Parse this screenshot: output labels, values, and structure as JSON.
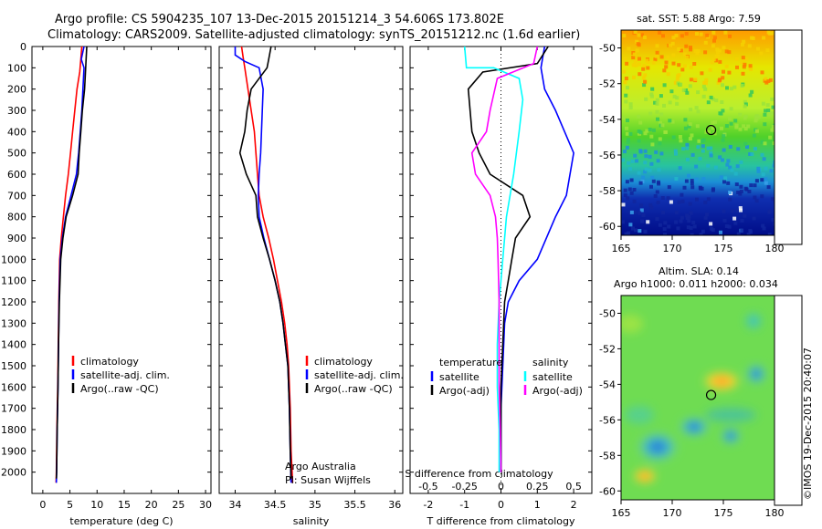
{
  "header": {
    "line1": "Argo profile: CS 5904235_107 13-Dec-2015 20151214_3 54.606S 173.802E",
    "line2": "Climatology: CARS2009. Satellite-adjusted climatology: synTS_20151212.nc (1.6d earlier)"
  },
  "credits": {
    "org": "Argo Australia",
    "pi": "PI: Susan Wijffels",
    "stamp": "©IMOS 19-Dec-2015 20:40:07"
  },
  "colors": {
    "climatology": "#ff0000",
    "satellite": "#0000ff",
    "argo": "#000000",
    "sal_satellite": "#00ffff",
    "sal_argo": "#ff00ff",
    "marker": "#000000"
  },
  "chart_data": [
    {
      "type": "line",
      "xlabel": "temperature (deg C)",
      "ylabel": "",
      "xlim": [
        -2,
        31
      ],
      "ylim": [
        2100,
        0
      ],
      "xticks": [
        "0",
        "5",
        "10",
        "15",
        "20",
        "25",
        "30"
      ],
      "yticks": [
        "0",
        "100",
        "200",
        "300",
        "400",
        "500",
        "600",
        "700",
        "800",
        "900",
        "1000",
        "1100",
        "1200",
        "1300",
        "1400",
        "1500",
        "1600",
        "1700",
        "1800",
        "1900",
        "2000"
      ],
      "legend": [
        "climatology",
        "satellite-adj. clim.",
        "Argo(..raw -QC)"
      ],
      "legend_position": "lower-center",
      "series": [
        {
          "name": "climatology",
          "color": "#ff0000",
          "points": [
            [
              7.2,
              0
            ],
            [
              7.0,
              60
            ],
            [
              6.8,
              120
            ],
            [
              6.3,
              200
            ],
            [
              5.9,
              300
            ],
            [
              5.5,
              400
            ],
            [
              5.1,
              500
            ],
            [
              4.7,
              600
            ],
            [
              4.2,
              700
            ],
            [
              3.8,
              800
            ],
            [
              3.4,
              900
            ],
            [
              3.1,
              1000
            ],
            [
              2.95,
              1200
            ],
            [
              2.85,
              1400
            ],
            [
              2.75,
              1600
            ],
            [
              2.6,
              1800
            ],
            [
              2.5,
              2000
            ],
            [
              2.45,
              2050
            ]
          ]
        },
        {
          "name": "satellite-adj. clim.",
          "color": "#0000ff",
          "points": [
            [
              7.6,
              0
            ],
            [
              7.1,
              60
            ],
            [
              7.6,
              100
            ],
            [
              7.4,
              200
            ],
            [
              7.2,
              300
            ],
            [
              6.9,
              400
            ],
            [
              6.6,
              500
            ],
            [
              6.2,
              600
            ],
            [
              5.2,
              700
            ],
            [
              4.2,
              800
            ],
            [
              3.6,
              900
            ],
            [
              3.2,
              1000
            ],
            [
              3.0,
              1200
            ],
            [
              2.9,
              1400
            ],
            [
              2.8,
              1600
            ],
            [
              2.65,
              1800
            ],
            [
              2.55,
              2000
            ],
            [
              2.5,
              2050
            ]
          ]
        },
        {
          "name": "Argo(..raw -QC)",
          "color": "#000000",
          "points": [
            [
              8.1,
              0
            ],
            [
              7.9,
              100
            ],
            [
              7.7,
              200
            ],
            [
              7.3,
              300
            ],
            [
              7.0,
              400
            ],
            [
              6.7,
              500
            ],
            [
              6.5,
              600
            ],
            [
              5.5,
              700
            ],
            [
              4.3,
              800
            ],
            [
              3.7,
              900
            ],
            [
              3.3,
              1000
            ],
            [
              3.05,
              1200
            ],
            [
              2.9,
              1400
            ],
            [
              2.8,
              1600
            ],
            [
              2.65,
              1800
            ],
            [
              2.55,
              2000
            ],
            [
              2.5,
              2030
            ]
          ]
        }
      ]
    },
    {
      "type": "line",
      "xlabel": "salinity",
      "ylabel": "",
      "xlim": [
        33.8,
        36.1
      ],
      "ylim": [
        2100,
        0
      ],
      "xticks": [
        "34",
        "34.5",
        "35",
        "35.5",
        "36"
      ],
      "legend": [
        "climatology",
        "satellite-adj. clim.",
        "Argo(..raw -QC)"
      ],
      "legend_position": "lower-right",
      "series": [
        {
          "name": "climatology",
          "color": "#ff0000",
          "points": [
            [
              34.08,
              0
            ],
            [
              34.1,
              50
            ],
            [
              34.12,
              100
            ],
            [
              34.16,
              200
            ],
            [
              34.2,
              300
            ],
            [
              34.24,
              400
            ],
            [
              34.26,
              500
            ],
            [
              34.28,
              600
            ],
            [
              34.3,
              700
            ],
            [
              34.35,
              800
            ],
            [
              34.42,
              900
            ],
            [
              34.48,
              1000
            ],
            [
              34.53,
              1100
            ],
            [
              34.58,
              1200
            ],
            [
              34.62,
              1300
            ],
            [
              34.65,
              1400
            ],
            [
              34.67,
              1500
            ],
            [
              34.69,
              1700
            ],
            [
              34.7,
              1900
            ],
            [
              34.72,
              2050
            ]
          ]
        },
        {
          "name": "satellite-adj. clim.",
          "color": "#0000ff",
          "points": [
            [
              34.0,
              0
            ],
            [
              34.0,
              40
            ],
            [
              34.12,
              70
            ],
            [
              34.3,
              100
            ],
            [
              34.35,
              200
            ],
            [
              34.34,
              300
            ],
            [
              34.33,
              400
            ],
            [
              34.32,
              500
            ],
            [
              34.3,
              600
            ],
            [
              34.29,
              700
            ],
            [
              34.3,
              800
            ],
            [
              34.36,
              900
            ],
            [
              34.43,
              1000
            ],
            [
              34.5,
              1100
            ],
            [
              34.56,
              1200
            ],
            [
              34.6,
              1300
            ],
            [
              34.63,
              1400
            ],
            [
              34.66,
              1500
            ],
            [
              34.68,
              1700
            ],
            [
              34.69,
              1900
            ],
            [
              34.7,
              2050
            ]
          ]
        },
        {
          "name": "Argo(..raw -QC)",
          "color": "#000000",
          "points": [
            [
              34.45,
              0
            ],
            [
              34.42,
              60
            ],
            [
              34.4,
              100
            ],
            [
              34.2,
              200
            ],
            [
              34.15,
              300
            ],
            [
              34.12,
              400
            ],
            [
              34.06,
              500
            ],
            [
              34.14,
              600
            ],
            [
              34.26,
              700
            ],
            [
              34.28,
              800
            ],
            [
              34.35,
              900
            ],
            [
              34.43,
              1000
            ],
            [
              34.5,
              1100
            ],
            [
              34.56,
              1200
            ],
            [
              34.6,
              1300
            ],
            [
              34.63,
              1400
            ],
            [
              34.66,
              1500
            ],
            [
              34.68,
              1700
            ],
            [
              34.69,
              1900
            ],
            [
              34.7,
              2030
            ]
          ]
        }
      ]
    },
    {
      "type": "line",
      "xlabel": "T difference from climatology",
      "x2label": "S difference from climatology",
      "xlim": [
        -2.5,
        2.5
      ],
      "ylim": [
        2100,
        0
      ],
      "xticks": [
        "-2",
        "-1",
        "0",
        "1",
        "2"
      ],
      "x2ticks": [
        "-0.5",
        "-0.25",
        "0",
        "0.25",
        "0.5"
      ],
      "legend_titles": [
        "temperature",
        "salinity"
      ],
      "legend": [
        "satellite",
        "Argo(-adj)",
        "satellite",
        "Argo(-adj)"
      ],
      "legend_position": "lower-center",
      "series": [
        {
          "name": "satellite",
          "color": "#0000ff",
          "points": [
            [
              1.2,
              0
            ],
            [
              1.1,
              100
            ],
            [
              1.2,
              200
            ],
            [
              1.5,
              300
            ],
            [
              2.0,
              500
            ],
            [
              1.8,
              700
            ],
            [
              1.5,
              800
            ],
            [
              1.0,
              1000
            ],
            [
              0.5,
              1100
            ],
            [
              0.2,
              1200
            ],
            [
              0.1,
              1300
            ],
            [
              0.05,
              1500
            ],
            [
              0.0,
              1700
            ],
            [
              0.0,
              1900
            ],
            [
              0.0,
              2000
            ]
          ]
        },
        {
          "name": "Argo(-adj)",
          "color": "#000000",
          "points": [
            [
              1.3,
              0
            ],
            [
              1.0,
              80
            ],
            [
              -0.5,
              120
            ],
            [
              -0.9,
              200
            ],
            [
              -0.8,
              400
            ],
            [
              -0.6,
              500
            ],
            [
              -0.3,
              600
            ],
            [
              0.6,
              700
            ],
            [
              0.8,
              800
            ],
            [
              0.4,
              900
            ],
            [
              0.3,
              1000
            ],
            [
              0.2,
              1100
            ],
            [
              0.1,
              1200
            ],
            [
              0.05,
              1400
            ],
            [
              0.0,
              1600
            ],
            [
              0.0,
              1800
            ],
            [
              0.0,
              2000
            ]
          ]
        },
        {
          "name": "satellite",
          "color": "#00ffff",
          "points": [
            [
              -1.0,
              0
            ],
            [
              -0.95,
              100
            ],
            [
              -0.2,
              100
            ],
            [
              0.5,
              150
            ],
            [
              0.6,
              250
            ],
            [
              0.5,
              400
            ],
            [
              0.35,
              600
            ],
            [
              0.15,
              800
            ],
            [
              0.05,
              1000
            ],
            [
              -0.05,
              1200
            ],
            [
              -0.1,
              1400
            ],
            [
              -0.1,
              1600
            ],
            [
              -0.05,
              1800
            ],
            [
              -0.05,
              2000
            ]
          ]
        },
        {
          "name": "Argo(-adj)",
          "color": "#ff00ff",
          "points": [
            [
              1.0,
              0
            ],
            [
              0.9,
              80
            ],
            [
              -0.1,
              150
            ],
            [
              -0.3,
              300
            ],
            [
              -0.4,
              400
            ],
            [
              -0.8,
              500
            ],
            [
              -0.7,
              600
            ],
            [
              -0.3,
              700
            ],
            [
              -0.15,
              800
            ],
            [
              -0.1,
              900
            ],
            [
              -0.08,
              1000
            ],
            [
              -0.05,
              1200
            ],
            [
              -0.05,
              1400
            ],
            [
              -0.05,
              1600
            ],
            [
              -0.02,
              1800
            ],
            [
              0.0,
              2000
            ]
          ]
        }
      ]
    },
    {
      "type": "heatmap",
      "title": "sat. SST: 5.88 Argo: 7.59",
      "xlim": [
        165,
        180
      ],
      "ylim": [
        -60.5,
        -49
      ],
      "xticks": [
        "165",
        "170",
        "175",
        "180"
      ],
      "yticks": [
        "-50",
        "-52",
        "-54",
        "-56",
        "-58",
        "-60"
      ],
      "marker": [
        173.8,
        -54.6
      ]
    },
    {
      "type": "heatmap",
      "title": "Altim. SLA: 0.14",
      "subtitle": "Argo h1000: 0.011 h2000: 0.034",
      "xlim": [
        165,
        180
      ],
      "ylim": [
        -60.5,
        -49
      ],
      "xticks": [
        "165",
        "170",
        "175",
        "180"
      ],
      "yticks": [
        "-50",
        "-52",
        "-54",
        "-56",
        "-58",
        "-60"
      ],
      "marker": [
        173.8,
        -54.6
      ]
    }
  ]
}
